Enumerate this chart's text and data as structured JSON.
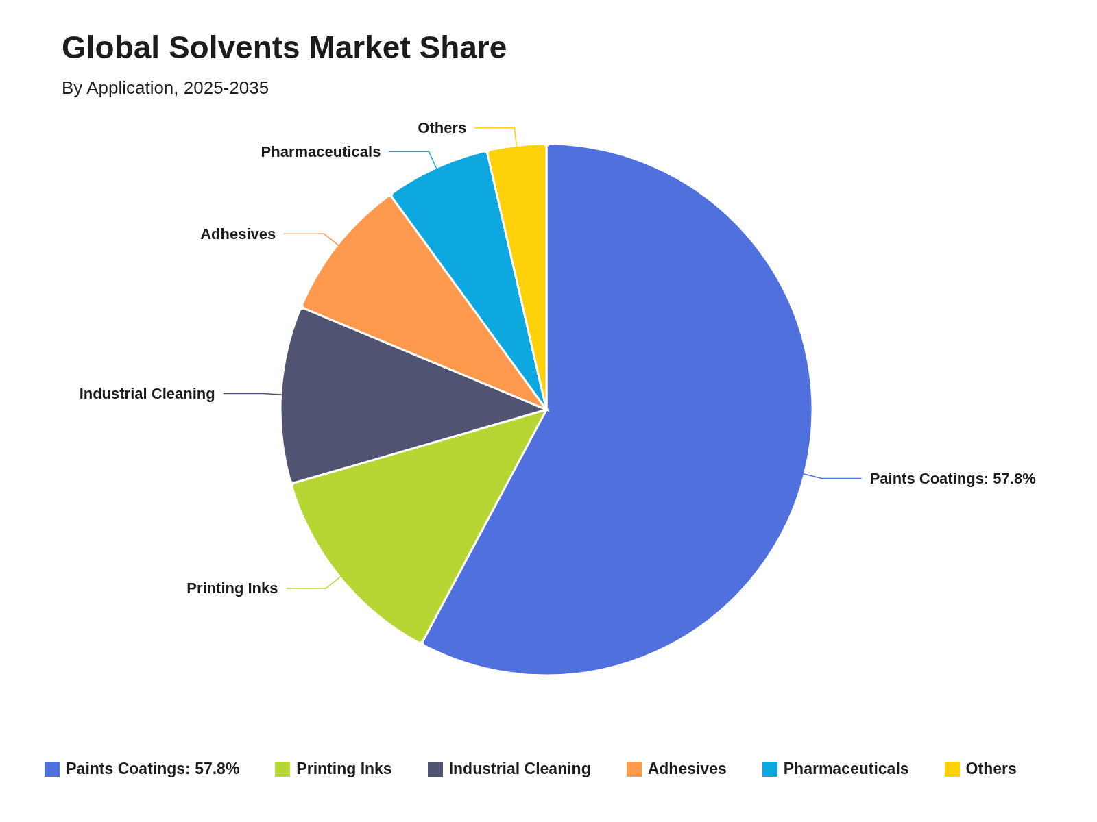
{
  "chart_data": {
    "type": "pie",
    "title": "Global Solvents Market Share",
    "subtitle": "By Application, 2025-2035",
    "categories": [
      "Paints Coatings: 57.8%",
      "Printing Inks",
      "Industrial Cleaning",
      "Adhesives",
      "Pharmaceuticals",
      "Others"
    ],
    "values": [
      57.8,
      12.7,
      10.8,
      8.7,
      6.4,
      3.6
    ],
    "colors": [
      "#5070dd",
      "#b6d634",
      "#505372",
      "#ff994d",
      "#0ca8df",
      "#ffd10a"
    ],
    "legend": "bottom"
  }
}
